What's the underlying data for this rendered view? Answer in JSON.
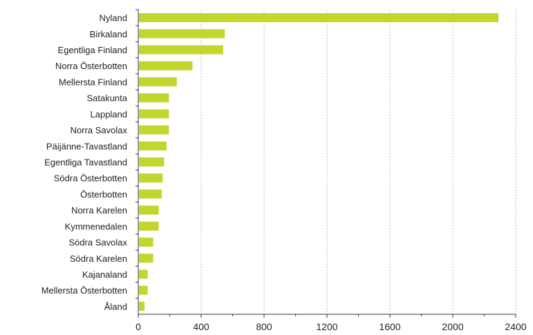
{
  "chart_data": {
    "type": "bar",
    "orientation": "horizontal",
    "categories": [
      "Nyland",
      "Birkaland",
      "Egentliga Finland",
      "Norra Österbotten",
      "Mellersta Finland",
      "Satakunta",
      "Lappland",
      "Norra Savolax",
      "Päijänne-Tavastland",
      "Egentliga Tavastland",
      "Södra Österbotten",
      "Österbotten",
      "Norra Karelen",
      "Kymmenedalen",
      "Södra Savolax",
      "Södra Karelen",
      "Kajanaland",
      "Mellersta Österbotten",
      "Åland"
    ],
    "values": [
      2290,
      550,
      540,
      345,
      245,
      195,
      195,
      195,
      180,
      165,
      155,
      150,
      130,
      130,
      95,
      95,
      60,
      60,
      40
    ],
    "x_ticks": [
      "0",
      "400",
      "800",
      "1200",
      "1600",
      "2000",
      "2400"
    ],
    "xlim": [
      0,
      2400
    ],
    "grid": "vertical-dashed",
    "bar_color": "#c2d62e",
    "title": "",
    "xlabel": "",
    "ylabel": ""
  }
}
